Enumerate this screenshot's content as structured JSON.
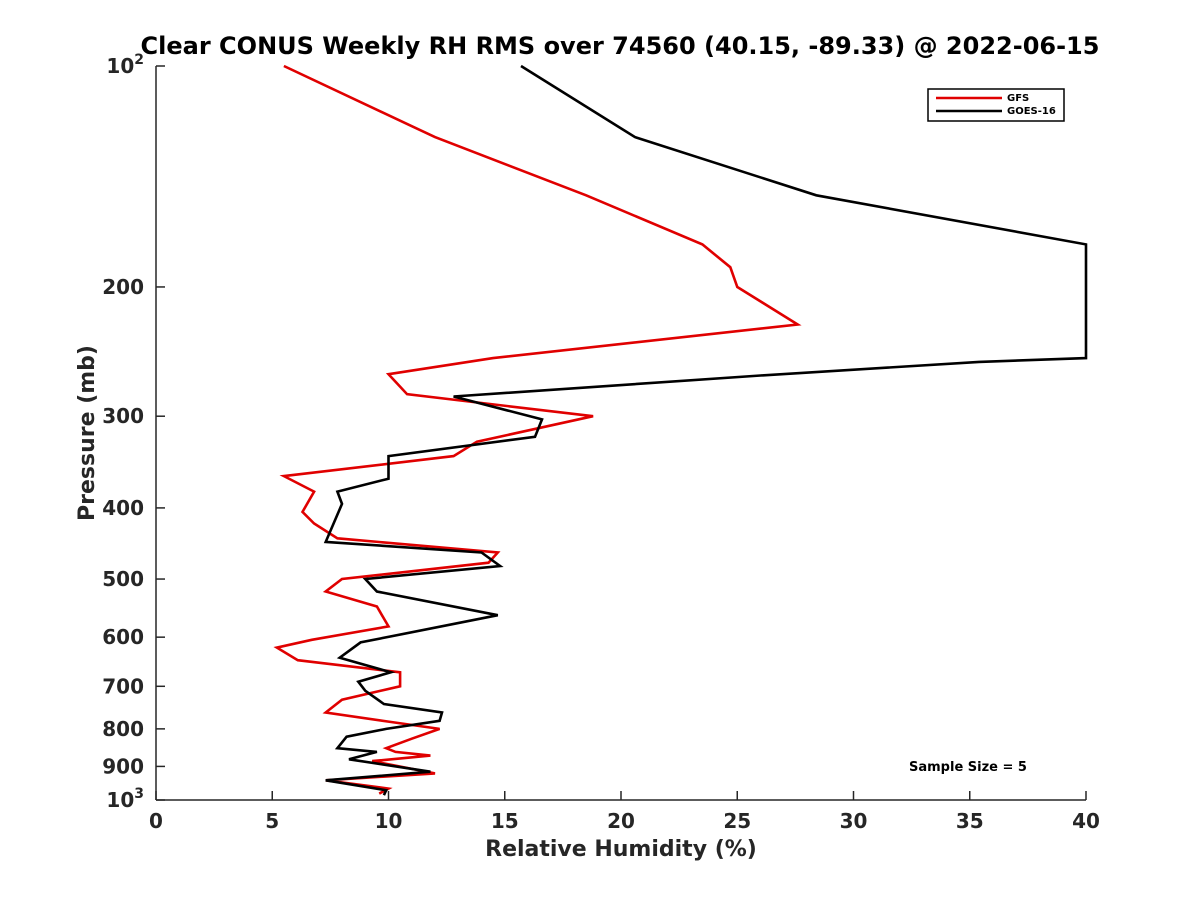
{
  "chart_data": {
    "type": "line",
    "title": "Clear CONUS Weekly RH RMS over 74560 (40.15, -89.33) @ 2022-06-15",
    "xlabel": "Relative Humidity (%)",
    "ylabel": "Pressure (mb)",
    "xlim": [
      0,
      40
    ],
    "ylim": [
      100,
      1000
    ],
    "y_scale": "log",
    "y_reversed": true,
    "grid": false,
    "legend_position": "top-right",
    "x_ticks": [
      "0",
      "5",
      "10",
      "15",
      "20",
      "25",
      "30",
      "35",
      "40"
    ],
    "y_ticks": [
      {
        "value": 100,
        "base": "10",
        "exp": "2"
      },
      {
        "value": 200,
        "label": "200"
      },
      {
        "value": 300,
        "label": "300"
      },
      {
        "value": 400,
        "label": "400"
      },
      {
        "value": 500,
        "label": "500"
      },
      {
        "value": 600,
        "label": "600"
      },
      {
        "value": 700,
        "label": "700"
      },
      {
        "value": 800,
        "label": "800"
      },
      {
        "value": 900,
        "label": "900"
      },
      {
        "value": 1000,
        "base": "10",
        "exp": "3"
      }
    ],
    "annotation": "Sample Size = 5",
    "series": [
      {
        "name": "GFS",
        "color": "#e00000",
        "points": [
          [
            5.5,
            100
          ],
          [
            12.0,
            125
          ],
          [
            18.5,
            150
          ],
          [
            23.5,
            175
          ],
          [
            24.7,
            188
          ],
          [
            25.0,
            200
          ],
          [
            27.6,
            225
          ],
          [
            14.5,
            250
          ],
          [
            10.0,
            263
          ],
          [
            10.8,
            280
          ],
          [
            18.8,
            300
          ],
          [
            13.8,
            325
          ],
          [
            12.8,
            340
          ],
          [
            5.5,
            362
          ],
          [
            6.8,
            380
          ],
          [
            6.3,
            405
          ],
          [
            6.8,
            420
          ],
          [
            7.8,
            440
          ],
          [
            14.7,
            460
          ],
          [
            14.3,
            475
          ],
          [
            8.0,
            500
          ],
          [
            7.3,
            520
          ],
          [
            9.5,
            545
          ],
          [
            10.0,
            580
          ],
          [
            6.7,
            605
          ],
          [
            5.2,
            620
          ],
          [
            6.1,
            645
          ],
          [
            10.5,
            670
          ],
          [
            10.5,
            700
          ],
          [
            8.0,
            730
          ],
          [
            7.3,
            760
          ],
          [
            10.0,
            782
          ],
          [
            12.2,
            800
          ],
          [
            11.0,
            825
          ],
          [
            9.9,
            850
          ],
          [
            10.3,
            860
          ],
          [
            11.8,
            870
          ],
          [
            9.3,
            885
          ],
          [
            12.0,
            920
          ],
          [
            7.3,
            940
          ],
          [
            10.0,
            965
          ],
          [
            9.6,
            980
          ]
        ]
      },
      {
        "name": "GOES-16",
        "color": "#000000",
        "points": [
          [
            15.7,
            100
          ],
          [
            20.6,
            125
          ],
          [
            28.4,
            150
          ],
          [
            40.0,
            175
          ],
          [
            40.0,
            250
          ],
          [
            35.4,
            253
          ],
          [
            26.0,
            264
          ],
          [
            12.8,
            282
          ],
          [
            16.6,
            303
          ],
          [
            16.3,
            320
          ],
          [
            10.0,
            340
          ],
          [
            10.0,
            365
          ],
          [
            7.8,
            380
          ],
          [
            8.0,
            395
          ],
          [
            7.3,
            445
          ],
          [
            14.0,
            460
          ],
          [
            14.8,
            480
          ],
          [
            9.0,
            500
          ],
          [
            9.5,
            520
          ],
          [
            14.7,
            560
          ],
          [
            8.8,
            610
          ],
          [
            7.9,
            640
          ],
          [
            10.1,
            670
          ],
          [
            8.7,
            690
          ],
          [
            9.0,
            710
          ],
          [
            9.8,
            740
          ],
          [
            12.3,
            760
          ],
          [
            12.2,
            780
          ],
          [
            9.9,
            800
          ],
          [
            8.2,
            820
          ],
          [
            7.8,
            850
          ],
          [
            9.5,
            860
          ],
          [
            8.3,
            880
          ],
          [
            11.8,
            915
          ],
          [
            7.3,
            940
          ],
          [
            9.9,
            970
          ],
          [
            9.8,
            985
          ]
        ]
      }
    ]
  }
}
